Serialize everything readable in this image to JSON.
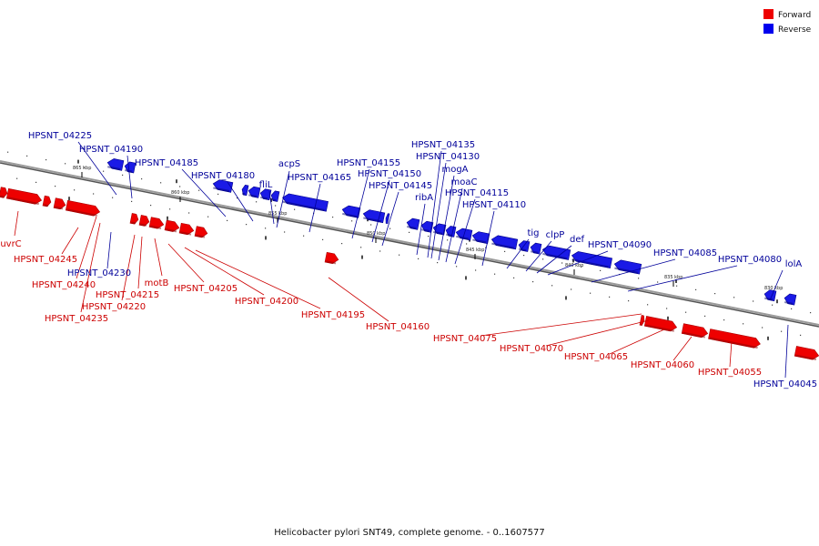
{
  "caption": "Helicobacter pylori SNT49, complete genome. - 0..1607577",
  "legend": [
    {
      "label": "Forward",
      "color": "#ee0000"
    },
    {
      "label": "Reverse",
      "color": "#0000ee"
    }
  ],
  "colors": {
    "forward": "#ee0000",
    "reverse": "#1a1ae6",
    "forward_label": "#cc0000",
    "reverse_label": "#00009a",
    "axis": "#888888"
  },
  "ticks": [
    "865 kbp",
    "860 kbp",
    "855 kbp",
    "850 kbp",
    "845 kbp",
    "840 kbp",
    "835 kbp",
    "830 kbp"
  ],
  "reverse_labels": [
    "HPSNT_04225",
    "HPSNT_04190",
    "HPSNT_04185",
    "HPSNT_04180",
    "fliL",
    "acpS",
    "HPSNT_04165",
    "HPSNT_04155",
    "HPSNT_04150",
    "HPSNT_04145",
    "HPSNT_04135",
    "HPSNT_04130",
    "mogA",
    "ribA",
    "moaC",
    "HPSNT_04115",
    "HPSNT_04110",
    "tig",
    "clpP",
    "def",
    "HPSNT_04090",
    "HPSNT_04085",
    "HPSNT_04080",
    "lolA",
    "HPSNT_04230",
    "HPSNT_04045"
  ],
  "forward_labels": [
    "uvrC",
    "HPSNT_04245",
    "HPSNT_04240",
    "HPSNT_04235",
    "HPSNT_04220",
    "HPSNT_04215",
    "motB",
    "HPSNT_04205",
    "HPSNT_04200",
    "HPSNT_04195",
    "HPSNT_04160",
    "HPSNT_04075",
    "HPSNT_04070",
    "HPSNT_04065",
    "HPSNT_04060",
    "HPSNT_04055"
  ]
}
